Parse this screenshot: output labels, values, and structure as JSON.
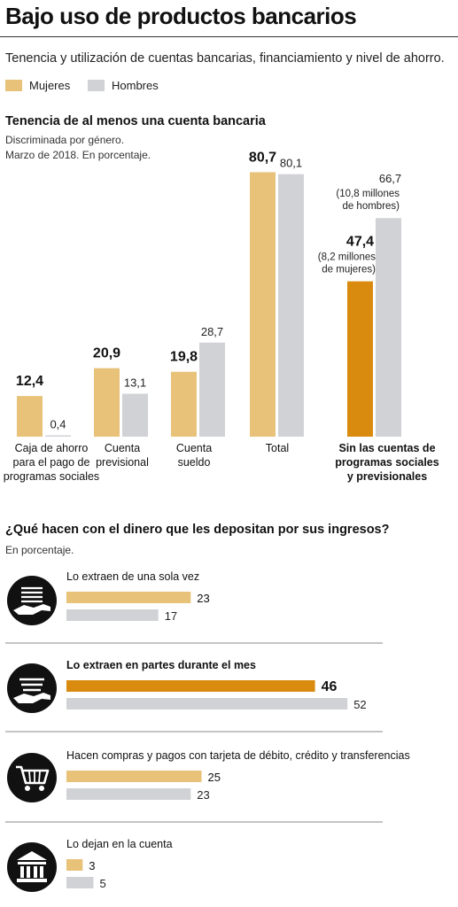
{
  "title": "Bajo uso de productos bancarios",
  "subtitle": "Tenencia y utilización de cuentas bancarias, financiamiento y nivel de ahorro.",
  "legend": [
    {
      "name": "Mujeres",
      "color": "#e9c27a"
    },
    {
      "name": "Hombres",
      "color": "#d1d2d6"
    }
  ],
  "section1": {
    "title": "Tenencia de al menos una cuenta bancaria",
    "note_line1": "Discriminada por género.",
    "note_line2": "Marzo de 2018. En porcentaje."
  },
  "section2": {
    "title": "¿Qué hacen con el dinero que les depositan por sus ingresos?",
    "note": "En porcentaje."
  },
  "colors": {
    "mujeres": "#e9c27a",
    "hombres": "#d1d2d6",
    "highlight": "#d98b10",
    "icon": "#111111"
  },
  "chart_data": [
    {
      "type": "bar",
      "title": "Tenencia de al menos una cuenta bancaria",
      "categories": [
        "Caja de ahorro para el pago de programas sociales",
        "Cuenta previsional",
        "Cuenta sueldo",
        "Total",
        "Sin las cuentas de programas sociales y previsionales"
      ],
      "category_lines": [
        [
          "Caja de ahorro",
          "para el pago de",
          "programas sociales"
        ],
        [
          "Cuenta",
          "previsional"
        ],
        [
          "Cuenta",
          "sueldo"
        ],
        [
          "Total"
        ],
        [
          "Sin las cuentas de",
          "programas sociales",
          "y previsionales"
        ]
      ],
      "series": [
        {
          "name": "Mujeres",
          "values": [
            12.4,
            20.9,
            19.8,
            80.7,
            47.4
          ]
        },
        {
          "name": "Hombres",
          "values": [
            0.4,
            13.1,
            28.7,
            80.1,
            66.7
          ]
        }
      ],
      "value_labels": [
        [
          "12,4",
          "0,4"
        ],
        [
          "20,9",
          "13,1"
        ],
        [
          "19,8",
          "28,7"
        ],
        [
          "80,7",
          "80,1"
        ],
        [
          "47,4",
          "66,7"
        ]
      ],
      "annotations": {
        "mujeres": [
          "(8,2 millones",
          "de mujeres)"
        ],
        "hombres": [
          "(10,8 millones",
          "de hombres)"
        ]
      },
      "highlight_category": 4
    },
    {
      "type": "bar",
      "title": "¿Qué hacen con el dinero que les depositan por sus ingresos?",
      "orientation": "horizontal",
      "categories": [
        "Lo extraen de una sola vez",
        "Lo extraen en partes durante el mes",
        "Hacen compras y pagos con tarjeta de débito, crédito y transferencias",
        "Lo dejan en la cuenta"
      ],
      "icons": [
        "cash-hand-icon",
        "cash-hand-icon",
        "shopping-cart-icon",
        "bank-icon"
      ],
      "series": [
        {
          "name": "Mujeres",
          "values": [
            23,
            46,
            25,
            3
          ]
        },
        {
          "name": "Hombres",
          "values": [
            17,
            52,
            23,
            5
          ]
        }
      ],
      "highlight_category": 1
    }
  ]
}
